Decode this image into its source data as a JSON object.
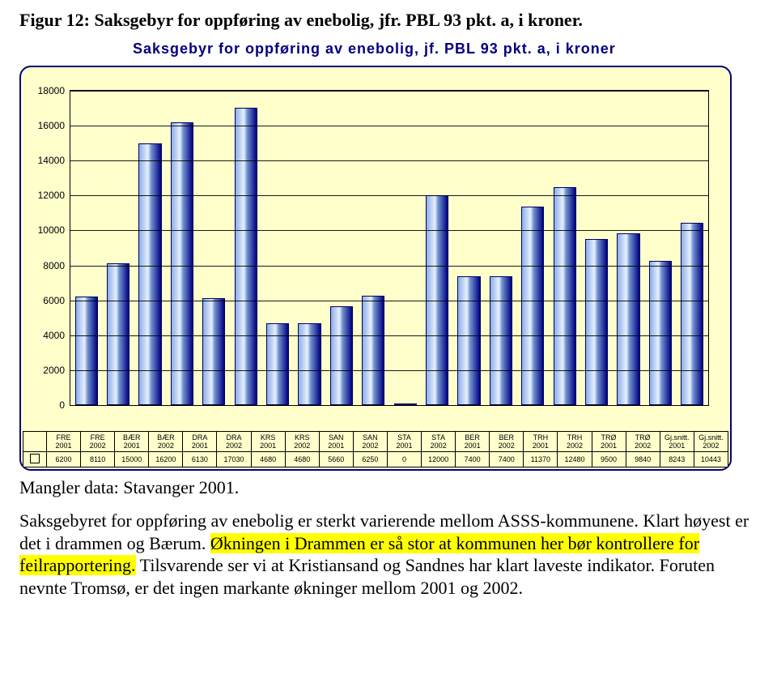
{
  "figure_headline": "Figur 12: Saksgebyr for oppføring av enebolig, jfr. PBL 93 pkt. a, i kroner.",
  "missing_note": "Mangler data: Stavanger 2001.",
  "body": {
    "sentence1_pre": "Saksgebyret for oppføring av enebolig er sterkt varierende mellom ASSS-kommunene. Klart høyest er det i drammen og Bærum. ",
    "sentence2_hl": "Økningen i Drammen er så stor at kommunen her bør kontrollere for feilrapportering.",
    "sentence3_post": " Tilsvarende ser vi at Kristiansand og Sandnes har klart laveste indikator. Foruten nevnte Tromsø, er det ingen markante økninger mellom 2001 og 2002."
  },
  "chart": {
    "type": "bar",
    "title": "Saksgebyr for oppføring av enebolig, jf. PBL 93 pkt. a, i kroner",
    "background_color": "#ffffcc",
    "frame_border_color": "#000080",
    "title_color": "#000080",
    "title_fontsize": 18,
    "ylim": [
      0,
      18000
    ],
    "ytick_step": 2000,
    "yticks": [
      0,
      2000,
      4000,
      6000,
      8000,
      10000,
      12000,
      14000,
      16000,
      18000
    ],
    "grid_color": "#000000",
    "bar_gradient_from": "#8caee8",
    "bar_gradient_mid": "#e8f0ff",
    "bar_gradient_to": "#000080",
    "bar_border_color": "#000060",
    "axis_fontsize": 12,
    "table_fontsize": 9,
    "categories_line1": [
      "FRE",
      "FRE",
      "BÆR",
      "BÆR",
      "DRA",
      "DRA",
      "KRS",
      "KRS",
      "SAN",
      "SAN",
      "STA",
      "STA",
      "BER",
      "BER",
      "TRH",
      "TRH",
      "TRØ",
      "TRØ",
      "Gj.snitt.",
      "Gj.snitt."
    ],
    "categories_line2": [
      "2001",
      "2002",
      "2001",
      "2002",
      "2001",
      "2002",
      "2001",
      "2002",
      "2001",
      "2002",
      "2001",
      "2002",
      "2001",
      "2002",
      "2001",
      "2002",
      "2001",
      "2002",
      "2001",
      "2002"
    ],
    "values": [
      6200,
      8110,
      15000,
      16200,
      6130,
      17030,
      4680,
      4680,
      5660,
      6250,
      0,
      12000,
      7400,
      7400,
      11370,
      12480,
      9500,
      9840,
      8243,
      10443
    ]
  }
}
